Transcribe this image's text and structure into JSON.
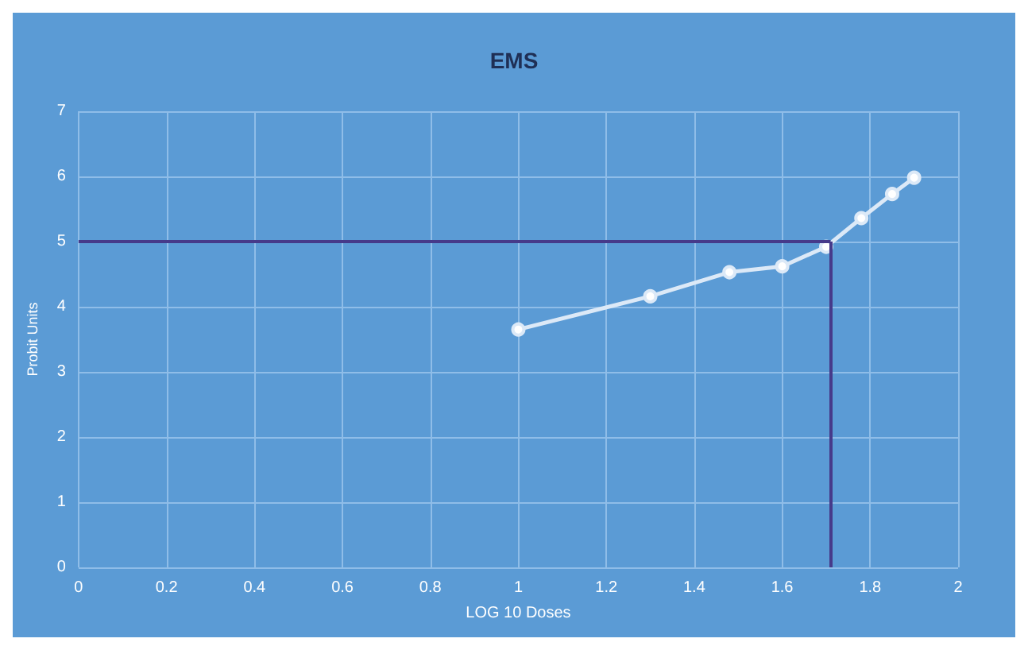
{
  "chart_data": {
    "type": "line",
    "title": "EMS",
    "xlabel": "LOG 10 Doses",
    "ylabel": "Probit Units",
    "x": [
      1,
      1.3,
      1.48,
      1.6,
      1.7,
      1.78,
      1.85,
      1.9
    ],
    "series": [
      {
        "color": "#dce9f7",
        "values": [
          3.65,
          4.16,
          4.53,
          4.62,
          4.92,
          5.36,
          5.73,
          5.98
        ]
      }
    ],
    "xlim": [
      0,
      2
    ],
    "xticks": [
      0,
      0.2,
      0.4,
      0.6,
      0.8,
      1,
      1.2,
      1.4,
      1.6,
      1.8,
      2
    ],
    "ylim": [
      0,
      7
    ],
    "yticks": [
      0,
      1,
      2,
      3,
      4,
      5,
      6,
      7
    ],
    "ref_lines": [
      {
        "axis": "y",
        "value": 5,
        "color": "#463a8a"
      },
      {
        "axis": "x",
        "value": 1.71,
        "color": "#463a8a"
      }
    ],
    "grid": true,
    "marker": "circle",
    "line_style": "solid"
  }
}
